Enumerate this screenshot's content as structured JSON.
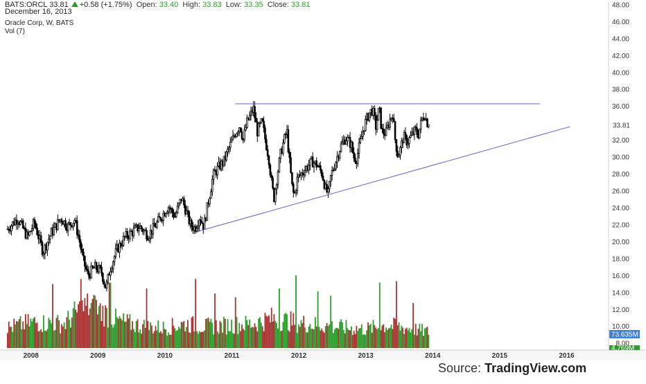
{
  "header": {
    "symbol": "BATS:ORCL",
    "last": "33.81",
    "change": "+0.58 (+1.75%)",
    "open_label": "Open:",
    "open": "33.40",
    "high_label": "High:",
    "high": "33.83",
    "low_label": "Low:",
    "low": "33.35",
    "close_label": "Close:",
    "close": "33.81",
    "date": "December 16, 2013",
    "series_title": "Oracle Corp, W, BATS",
    "indicator": "Vol (7)"
  },
  "source": {
    "prefix": "Source:",
    "brand": "TradingView.com"
  },
  "chart_data": {
    "type": "candlestick",
    "interval": "weekly",
    "x_tick_labels": [
      "2008",
      "2009",
      "2010",
      "2011",
      "2012",
      "2013",
      "2014",
      "2015",
      "2016"
    ],
    "y_tick_labels": [
      "8.00",
      "10.00",
      "12.00",
      "14.00",
      "16.00",
      "18.00",
      "20.00",
      "22.00",
      "24.00",
      "26.00",
      "28.00",
      "30.00",
      "32.00",
      "34.00",
      "36.00",
      "38.00",
      "40.00",
      "42.00",
      "44.00",
      "46.00",
      "48.00"
    ],
    "ylim": [
      7.2,
      48.4
    ],
    "xlim": [
      2007.62,
      2016.2
    ],
    "last_price_label": "33.81",
    "volume_last_label": "73.635M",
    "volume_avg_label": "4.769M",
    "price_path": [
      [
        2007.65,
        21.5
      ],
      [
        2007.8,
        22.8
      ],
      [
        2007.95,
        20.5
      ],
      [
        2008.05,
        22.3
      ],
      [
        2008.18,
        18.8
      ],
      [
        2008.3,
        21.0
      ],
      [
        2008.45,
        22.8
      ],
      [
        2008.55,
        21.8
      ],
      [
        2008.65,
        22.6
      ],
      [
        2008.72,
        20.3
      ],
      [
        2008.78,
        17.8
      ],
      [
        2008.85,
        16.0
      ],
      [
        2008.95,
        17.0
      ],
      [
        2009.05,
        16.5
      ],
      [
        2009.12,
        14.5
      ],
      [
        2009.18,
        16.8
      ],
      [
        2009.28,
        19.0
      ],
      [
        2009.4,
        20.5
      ],
      [
        2009.52,
        21.2
      ],
      [
        2009.62,
        21.8
      ],
      [
        2009.75,
        20.8
      ],
      [
        2009.85,
        21.8
      ],
      [
        2009.95,
        23.0
      ],
      [
        2010.05,
        24.2
      ],
      [
        2010.15,
        23.0
      ],
      [
        2010.25,
        25.2
      ],
      [
        2010.3,
        24.0
      ],
      [
        2010.38,
        22.0
      ],
      [
        2010.45,
        21.6
      ],
      [
        2010.52,
        23.0
      ],
      [
        2010.58,
        21.8
      ],
      [
        2010.65,
        24.8
      ],
      [
        2010.72,
        27.8
      ],
      [
        2010.8,
        28.8
      ],
      [
        2010.88,
        29.5
      ],
      [
        2010.98,
        31.5
      ],
      [
        2011.05,
        32.8
      ],
      [
        2011.12,
        33.8
      ],
      [
        2011.17,
        32.0
      ],
      [
        2011.22,
        34.0
      ],
      [
        2011.28,
        35.0
      ],
      [
        2011.32,
        35.8
      ],
      [
        2011.38,
        33.0
      ],
      [
        2011.45,
        34.2
      ],
      [
        2011.5,
        32.0
      ],
      [
        2011.55,
        30.0
      ],
      [
        2011.6,
        26.5
      ],
      [
        2011.63,
        25.2
      ],
      [
        2011.68,
        28.0
      ],
      [
        2011.73,
        30.5
      ],
      [
        2011.78,
        32.0
      ],
      [
        2011.82,
        33.2
      ],
      [
        2011.86,
        29.5
      ],
      [
        2011.9,
        26.5
      ],
      [
        2011.93,
        25.3
      ],
      [
        2011.98,
        27.5
      ],
      [
        2012.05,
        28.2
      ],
      [
        2012.12,
        28.8
      ],
      [
        2012.2,
        29.5
      ],
      [
        2012.28,
        29.0
      ],
      [
        2012.35,
        28.0
      ],
      [
        2012.4,
        26.2
      ],
      [
        2012.44,
        25.6
      ],
      [
        2012.48,
        27.8
      ],
      [
        2012.55,
        29.5
      ],
      [
        2012.62,
        31.2
      ],
      [
        2012.7,
        32.3
      ],
      [
        2012.78,
        31.5
      ],
      [
        2012.82,
        30.0
      ],
      [
        2012.86,
        29.8
      ],
      [
        2012.92,
        31.8
      ],
      [
        2012.98,
        33.8
      ],
      [
        2013.05,
        35.2
      ],
      [
        2013.1,
        35.6
      ],
      [
        2013.15,
        33.6
      ],
      [
        2013.2,
        35.8
      ],
      [
        2013.24,
        33.0
      ],
      [
        2013.3,
        32.8
      ],
      [
        2013.35,
        34.2
      ],
      [
        2013.4,
        35.2
      ],
      [
        2013.44,
        32.0
      ],
      [
        2013.48,
        30.2
      ],
      [
        2013.52,
        31.0
      ],
      [
        2013.56,
        32.4
      ],
      [
        2013.62,
        31.8
      ],
      [
        2013.68,
        32.5
      ],
      [
        2013.74,
        33.2
      ],
      [
        2013.78,
        32.6
      ],
      [
        2013.84,
        34.5
      ],
      [
        2013.88,
        35.1
      ],
      [
        2013.91,
        34.2
      ],
      [
        2013.94,
        33.81
      ]
    ],
    "volume_profile": [
      [
        2007.65,
        0.3
      ],
      [
        2008.0,
        0.38
      ],
      [
        2008.5,
        0.36
      ],
      [
        2008.7,
        0.55
      ],
      [
        2008.85,
        0.62
      ],
      [
        2009.05,
        0.55
      ],
      [
        2009.3,
        0.4
      ],
      [
        2009.7,
        0.32
      ],
      [
        2010.0,
        0.3
      ],
      [
        2010.3,
        0.36
      ],
      [
        2010.6,
        0.32
      ],
      [
        2010.95,
        0.34
      ],
      [
        2011.3,
        0.36
      ],
      [
        2011.6,
        0.44
      ],
      [
        2011.95,
        0.38
      ],
      [
        2012.3,
        0.34
      ],
      [
        2012.7,
        0.3
      ],
      [
        2013.0,
        0.28
      ],
      [
        2013.3,
        0.34
      ],
      [
        2013.6,
        0.3
      ],
      [
        2013.94,
        0.24
      ]
    ],
    "volume_spikes": [
      [
        2008.32,
        0.88
      ],
      [
        2008.75,
        0.95
      ],
      [
        2008.95,
        0.72
      ],
      [
        2009.18,
        0.9
      ],
      [
        2009.72,
        0.82
      ],
      [
        2010.45,
        0.95
      ],
      [
        2010.75,
        0.75
      ],
      [
        2011.05,
        0.7
      ],
      [
        2011.7,
        0.82
      ],
      [
        2011.95,
        1.0
      ],
      [
        2012.28,
        0.78
      ],
      [
        2012.48,
        0.72
      ],
      [
        2013.2,
        0.9
      ],
      [
        2013.45,
        0.92
      ],
      [
        2013.7,
        0.62
      ]
    ],
    "trendlines": [
      {
        "name": "resistance",
        "from": [
          2011.05,
          36.3
        ],
        "to": [
          2015.6,
          36.3
        ]
      },
      {
        "name": "support",
        "from": [
          2010.48,
          21.2
        ],
        "to": [
          2016.05,
          33.6
        ]
      }
    ],
    "colors": {
      "candle": "#000000",
      "volume_up": "#2a9d2a",
      "volume_down": "#a83232",
      "trendline": "#5f5fcf",
      "last_price_box": "#ffffff",
      "volume_box": "#3f7fd6",
      "volume_avg_box": "#2a9d2a"
    }
  }
}
